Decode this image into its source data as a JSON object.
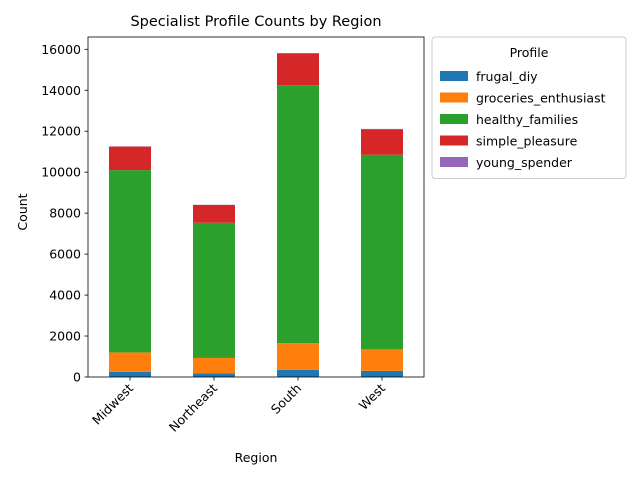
{
  "chart_data": {
    "type": "bar",
    "stacked": true,
    "title": "Specialist Profile Counts by Region",
    "xlabel": "Region",
    "ylabel": "Count",
    "categories": [
      "Midwest",
      "Northeast",
      "South",
      "West"
    ],
    "ylim": [
      0,
      16600
    ],
    "yticks": [
      0,
      2000,
      4000,
      6000,
      8000,
      10000,
      12000,
      14000,
      16000
    ],
    "ytick_labels": [
      "0",
      "2000",
      "4000",
      "6000",
      "8000",
      "10000",
      "12000",
      "14000",
      "16000"
    ],
    "grid": false,
    "legend": {
      "title": "Profile",
      "placement": "outside-upper-right"
    },
    "series": [
      {
        "name": "frugal_diy",
        "color": "#1f77b4",
        "values": [
          250,
          180,
          350,
          300
        ]
      },
      {
        "name": "groceries_enthusiast",
        "color": "#ff7f0e",
        "values": [
          950,
          750,
          1300,
          1050
        ]
      },
      {
        "name": "healthy_families",
        "color": "#2ca02c",
        "values": [
          8900,
          6600,
          12600,
          9500
        ]
      },
      {
        "name": "simple_pleasure",
        "color": "#d62728",
        "values": [
          1150,
          870,
          1550,
          1250
        ]
      },
      {
        "name": "young_spender",
        "color": "#9467bd",
        "values": [
          10,
          8,
          15,
          12
        ]
      }
    ]
  }
}
